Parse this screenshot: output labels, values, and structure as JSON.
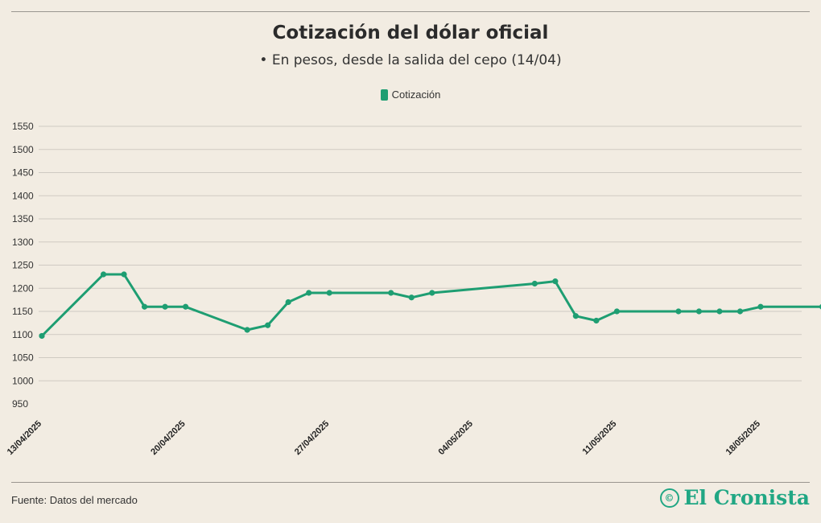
{
  "header": {
    "title": "Cotización del dólar oficial",
    "subtitle": "• En pesos, desde la salida del cepo (14/04)"
  },
  "legend": {
    "label": "Cotización",
    "color": "#1e9e72"
  },
  "footer": {
    "source": "Fuente: Datos del mercado",
    "brand": "El Cronista",
    "brand_icon": "©"
  },
  "colors": {
    "line": "#1e9e72",
    "brand": "#21a784",
    "background": "#f2ece2",
    "grid": "#cfcac2"
  },
  "chart_data": {
    "type": "line",
    "title": "Cotización del dólar oficial",
    "subtitle": "• En pesos, desde la salida del cepo (14/04)",
    "xlabel": "",
    "ylabel": "",
    "ylim": [
      950,
      1550
    ],
    "yticks": [
      950,
      1000,
      1050,
      1100,
      1150,
      1200,
      1250,
      1300,
      1350,
      1400,
      1450,
      1500,
      1550
    ],
    "xlim": [
      "2025-04-13",
      "2025-05-20"
    ],
    "xtick_labels": [
      "13/04/2025",
      "20/04/2025",
      "27/04/2025",
      "04/05/2025",
      "11/05/2025",
      "18/05/2025"
    ],
    "xtick_dates": [
      "2025-04-13",
      "2025-04-20",
      "2025-04-27",
      "2025-05-04",
      "2025-05-11",
      "2025-05-18"
    ],
    "grid": true,
    "legend_position": "top-center",
    "series": [
      {
        "name": "Cotización",
        "color": "#1e9e72",
        "points": [
          {
            "x": "2025-04-13",
            "y": 1097
          },
          {
            "x": "2025-04-16",
            "y": 1230
          },
          {
            "x": "2025-04-17",
            "y": 1230
          },
          {
            "x": "2025-04-18",
            "y": 1160
          },
          {
            "x": "2025-04-19",
            "y": 1160
          },
          {
            "x": "2025-04-20",
            "y": 1160
          },
          {
            "x": "2025-04-23",
            "y": 1110
          },
          {
            "x": "2025-04-24",
            "y": 1120
          },
          {
            "x": "2025-04-25",
            "y": 1170
          },
          {
            "x": "2025-04-26",
            "y": 1190
          },
          {
            "x": "2025-04-27",
            "y": 1190
          },
          {
            "x": "2025-04-30",
            "y": 1190
          },
          {
            "x": "2025-05-01",
            "y": 1180
          },
          {
            "x": "2025-05-02",
            "y": 1190
          },
          {
            "x": "2025-05-07",
            "y": 1210
          },
          {
            "x": "2025-05-08",
            "y": 1215
          },
          {
            "x": "2025-05-09",
            "y": 1140
          },
          {
            "x": "2025-05-10",
            "y": 1130
          },
          {
            "x": "2025-05-11",
            "y": 1150
          },
          {
            "x": "2025-05-14",
            "y": 1150
          },
          {
            "x": "2025-05-15",
            "y": 1150
          },
          {
            "x": "2025-05-16",
            "y": 1150
          },
          {
            "x": "2025-05-17",
            "y": 1150
          },
          {
            "x": "2025-05-18",
            "y": 1160
          },
          {
            "x": "2025-05-21",
            "y": 1160
          }
        ]
      }
    ]
  }
}
